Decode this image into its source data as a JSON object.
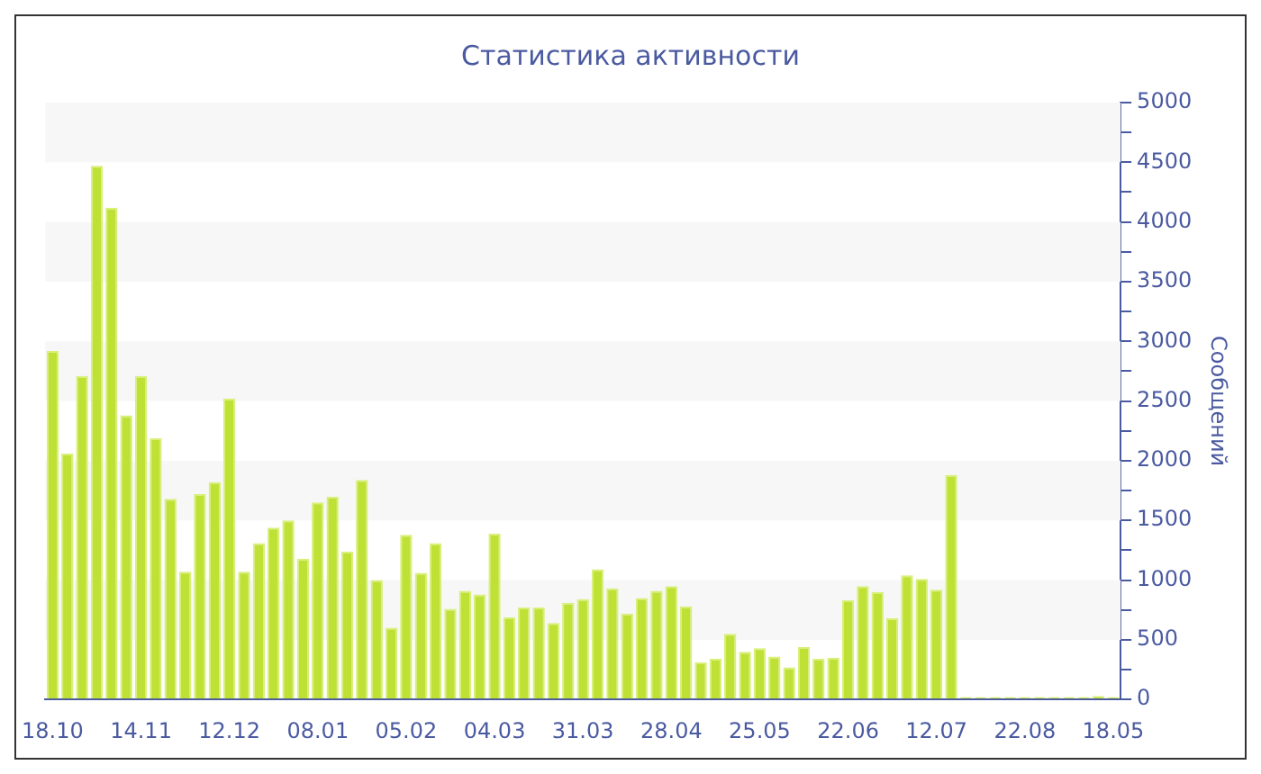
{
  "chart_data": {
    "type": "bar",
    "title": "Статистика активности",
    "ylabel": "Сообщений",
    "categories": [
      "18.10",
      null,
      null,
      null,
      null,
      null,
      "14.11",
      null,
      null,
      null,
      null,
      null,
      "12.12",
      null,
      null,
      null,
      null,
      null,
      "08.01",
      null,
      null,
      null,
      null,
      null,
      "05.02",
      null,
      null,
      null,
      null,
      null,
      "04.03",
      null,
      null,
      null,
      null,
      null,
      "31.03",
      null,
      null,
      null,
      null,
      null,
      "28.04",
      null,
      null,
      null,
      null,
      null,
      "25.05",
      null,
      null,
      null,
      null,
      null,
      "22.06",
      null,
      null,
      null,
      null,
      null,
      "12.07",
      null,
      null,
      null,
      null,
      null,
      "22.08",
      null,
      null,
      null,
      null,
      null,
      "18.05"
    ],
    "values": [
      2920,
      2060,
      2710,
      4470,
      4120,
      2380,
      2710,
      2190,
      1680,
      1070,
      1720,
      1820,
      2520,
      1070,
      1310,
      1440,
      1500,
      1180,
      1650,
      1700,
      1240,
      1840,
      1000,
      600,
      1380,
      1060,
      1310,
      760,
      910,
      880,
      1390,
      690,
      770,
      770,
      640,
      810,
      840,
      1090,
      930,
      720,
      850,
      910,
      950,
      780,
      310,
      340,
      550,
      400,
      430,
      360,
      270,
      440,
      340,
      350,
      830,
      950,
      900,
      680,
      1040,
      1010,
      920,
      1880,
      20,
      20,
      20,
      20,
      20,
      20,
      20,
      20,
      20,
      30,
      20
    ],
    "color": "#bfe135",
    "ylim": [
      0,
      5000
    ],
    "yticks": [
      0,
      {
        "value": 250,
        "label": null
      },
      500,
      {
        "value": 750,
        "label": null
      },
      1000,
      {
        "value": 1250,
        "label": null
      },
      1500,
      {
        "value": 1750,
        "label": null
      },
      2000,
      {
        "value": 2250,
        "label": null
      },
      2500,
      {
        "value": 2750,
        "label": null
      },
      3000,
      {
        "value": 3250,
        "label": null
      },
      3500,
      {
        "value": 3750,
        "label": null
      },
      4000,
      {
        "value": 4250,
        "label": null
      },
      4500,
      {
        "value": 4750,
        "label": null
      },
      5000
    ],
    "bands": [
      {
        "axis": "y",
        "from": 500,
        "to": 1000,
        "color": "#f7f7f7"
      },
      {
        "axis": "y",
        "from": 1500,
        "to": 2000,
        "color": "#f7f7f7"
      },
      {
        "axis": "y",
        "from": 2500,
        "to": 3000,
        "color": "#f7f7f7"
      },
      {
        "axis": "y",
        "from": 3500,
        "to": 4000,
        "color": "#f7f7f7"
      },
      {
        "axis": "y",
        "from": 4500,
        "to": 5000,
        "color": "#f7f7f7"
      }
    ]
  }
}
